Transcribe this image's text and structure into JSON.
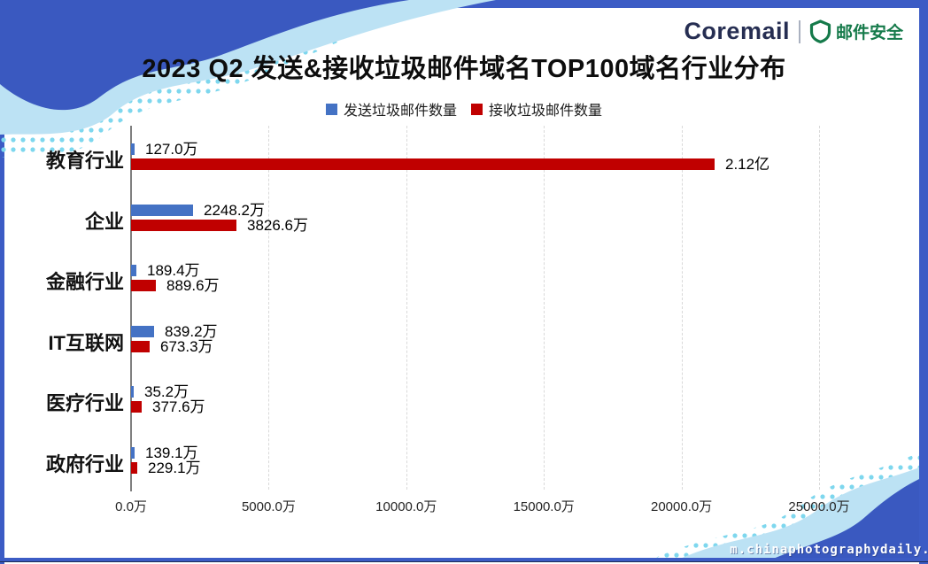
{
  "brand": {
    "wordmark": "Coremail",
    "badge_label": "邮件安全",
    "wordmark_color": "#262e52",
    "badge_color": "#157a4a"
  },
  "title": "2023 Q2 发送&接收垃圾邮件域名TOP100域名行业分布",
  "watermark": "m.chinaphotographydaily.c",
  "colors": {
    "series_send": "#4472c4",
    "series_receive": "#c00000",
    "frame_blue": "#3c5cc5",
    "wave_light_blue": "#bce2f4",
    "wave_dot_cyan": "#7ed7ee",
    "gridline": "#d9d9d9",
    "axis": "#7f7f7f"
  },
  "chart_data": {
    "type": "bar",
    "orientation": "horizontal",
    "title": "2023 Q2 发送&接收垃圾邮件域名TOP100域名行业分布",
    "categories": [
      "教育行业",
      "企业",
      "金融行业",
      "IT互联网",
      "医疗行业",
      "政府行业"
    ],
    "series": [
      {
        "name": "发送垃圾邮件数量",
        "color": "#4472c4",
        "unit": "万",
        "values_wan": [
          127.0,
          2248.2,
          189.4,
          839.2,
          35.2,
          139.1
        ],
        "labels": [
          "127.0万",
          "2248.2万",
          "189.4万",
          "839.2万",
          "35.2万",
          "139.1万"
        ]
      },
      {
        "name": "接收垃圾邮件数量",
        "color": "#c00000",
        "unit": "万",
        "values_wan": [
          21200,
          3826.6,
          889.6,
          673.3,
          377.6,
          229.1
        ],
        "labels": [
          "2.12亿",
          "3826.6万",
          "889.6万",
          "673.3万",
          "377.6万",
          "229.1万"
        ]
      }
    ],
    "x_axis": {
      "min_wan": 0,
      "max_wan": 25000,
      "ticks_wan": [
        0,
        5000,
        10000,
        15000,
        20000,
        25000
      ],
      "tick_labels": [
        "0.0万",
        "5000.0万",
        "10000.0万",
        "15000.0万",
        "20000.0万",
        "25000.0万"
      ]
    },
    "legend_position": "top",
    "grid": "vertical-dashed"
  }
}
